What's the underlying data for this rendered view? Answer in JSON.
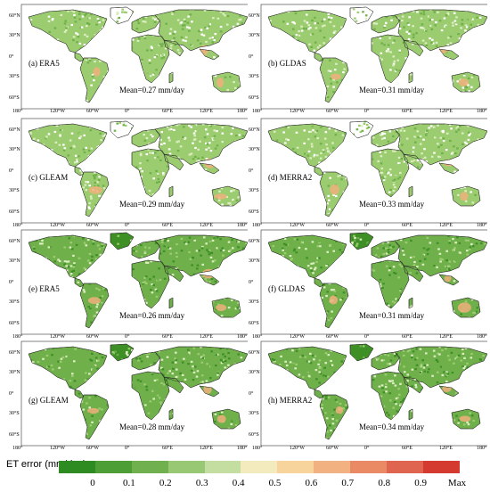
{
  "lat_ticks": [
    "60°N",
    "30°N",
    "0°",
    "30°S",
    "60°S"
  ],
  "lon_ticks": [
    "180°",
    "120°W",
    "60°W",
    "0°",
    "60°E",
    "120°E",
    "180°"
  ],
  "panels": [
    {
      "tag": "(a) ERA5",
      "mean": "Mean=0.27 mm/day",
      "level": 0.27,
      "dry": false
    },
    {
      "tag": "(b) GLDAS",
      "mean": "Mean=0.31 mm/day",
      "level": 0.31,
      "dry": false
    },
    {
      "tag": "(c)  GLEAM",
      "mean": "Mean=0.29 mm/day",
      "level": 0.29,
      "dry": false
    },
    {
      "tag": "(d)  MERRA2",
      "mean": "Mean=0.33 mm/day",
      "level": 0.33,
      "dry": false
    },
    {
      "tag": "(e) ERA5",
      "mean": "Mean=0.26 mm/day",
      "level": 0.26,
      "dry": true
    },
    {
      "tag": "(f) GLDAS",
      "mean": "Mean=0.31 mm/day",
      "level": 0.31,
      "dry": true
    },
    {
      "tag": "(g) GLEAM",
      "mean": "Mean=0.28 mm/day",
      "level": 0.28,
      "dry": true
    },
    {
      "tag": "(h) MERRA2",
      "mean": "Mean=0.34 mm/day",
      "level": 0.34,
      "dry": true
    }
  ],
  "legend": {
    "title": "ET error (mm/day)",
    "ticks": [
      "0",
      "0.1",
      "0.2",
      "0.3",
      "0.4",
      "0.5",
      "0.6",
      "0.7",
      "0.8",
      "0.9",
      "Max"
    ],
    "colors": [
      "#2e8b22",
      "#4e9e36",
      "#70b04e",
      "#98c873",
      "#c3dea0",
      "#f3ebbd",
      "#f7d49b",
      "#f2b180",
      "#e98a64",
      "#df6550",
      "#d43a2f"
    ]
  },
  "map_colors": {
    "land_low": "#9ccc70",
    "land_mid": "#6fb04b",
    "land_high": "#3e8f26",
    "land_pale": "#dcedc1",
    "hot": "#f0b07c",
    "ice": "#ffffff"
  }
}
